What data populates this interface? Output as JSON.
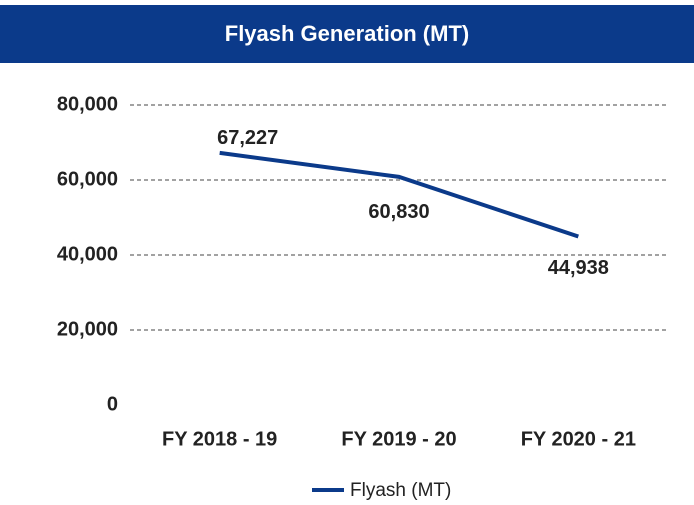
{
  "chart_data": {
    "type": "line",
    "title": "Flyash Generation (MT)",
    "categories": [
      "FY 2018 - 19",
      "FY 2019 - 20",
      "FY 2020 - 21"
    ],
    "series": [
      {
        "name": "Flyash (MT)",
        "color": "#0b3a8a",
        "values": [
          67227,
          60830,
          44938
        ],
        "value_labels": [
          "67,227",
          "60,830",
          "44,938"
        ]
      }
    ],
    "ylim": [
      0,
      80000
    ],
    "yticks": [
      0,
      {
        "value": 20000,
        "label": "20,000"
      },
      {
        "value": 40000,
        "label": "40,000"
      },
      {
        "value": 60000,
        "label": "60,000"
      },
      {
        "value": 80000,
        "label": "80,000"
      }
    ],
    "grid": true,
    "legend": "bottom"
  }
}
